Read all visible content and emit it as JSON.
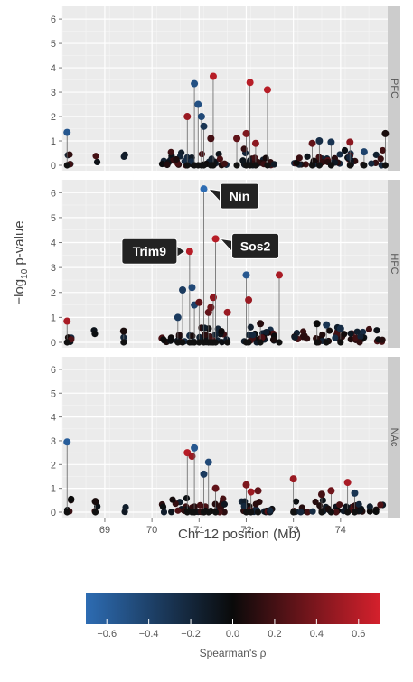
{
  "chart_data": {
    "type": "scatter",
    "subtype": "faceted-manhattan-lollipop",
    "xlabel": "Chr 12 position (Mb)",
    "ylabel": "−log10 p-value",
    "xlim": [
      68.1,
      75.0
    ],
    "ylim": [
      0,
      6.3
    ],
    "x_ticks": [
      69,
      70,
      71,
      72,
      73,
      74
    ],
    "y_ticks": [
      0,
      1,
      2,
      3,
      4,
      5,
      6
    ],
    "grid": true,
    "color_scale": {
      "title": "Spearman's ρ",
      "min": -0.7,
      "max": 0.7,
      "ticks": [
        "−0.6",
        "−0.4",
        "−0.2",
        "0.0",
        "0.2",
        "0.4",
        "0.6"
      ],
      "tick_values": [
        -0.6,
        -0.4,
        -0.2,
        0.0,
        0.2,
        0.4,
        0.6
      ],
      "low_color": "#2d6cb3",
      "mid_color": "#0a0a0a",
      "high_color": "#d4202c"
    },
    "panels": [
      {
        "strip": "PFC",
        "highlights": [
          {
            "x": 68.2,
            "y": 1.35,
            "r": -0.55
          },
          {
            "x": 70.75,
            "y": 2.0,
            "r": 0.5
          },
          {
            "x": 70.9,
            "y": 3.35,
            "r": -0.5
          },
          {
            "x": 70.98,
            "y": 2.5,
            "r": -0.5
          },
          {
            "x": 71.05,
            "y": 2.0,
            "r": -0.45
          },
          {
            "x": 71.1,
            "y": 1.6,
            "r": -0.3
          },
          {
            "x": 71.3,
            "y": 3.65,
            "r": 0.6
          },
          {
            "x": 71.25,
            "y": 1.1,
            "r": 0.2
          },
          {
            "x": 71.8,
            "y": 1.1,
            "r": 0.3
          },
          {
            "x": 72.0,
            "y": 1.3,
            "r": 0.4
          },
          {
            "x": 72.08,
            "y": 3.4,
            "r": 0.6
          },
          {
            "x": 72.2,
            "y": 0.9,
            "r": 0.45
          },
          {
            "x": 72.45,
            "y": 3.1,
            "r": 0.6
          },
          {
            "x": 73.4,
            "y": 0.9,
            "r": 0.3
          },
          {
            "x": 73.55,
            "y": 1.0,
            "r": -0.25
          },
          {
            "x": 73.8,
            "y": 0.95,
            "r": -0.3
          },
          {
            "x": 74.2,
            "y": 0.95,
            "r": 0.45
          },
          {
            "x": 74.5,
            "y": 0.55,
            "r": -0.4
          },
          {
            "x": 74.95,
            "y": 1.3,
            "r": 0.05
          }
        ],
        "annotations": []
      },
      {
        "strip": "HPC",
        "highlights": [
          {
            "x": 68.2,
            "y": 0.85,
            "r": 0.55
          },
          {
            "x": 69.4,
            "y": 0.45,
            "r": 0.05
          },
          {
            "x": 70.55,
            "y": 1.0,
            "r": -0.35
          },
          {
            "x": 70.65,
            "y": 2.1,
            "r": -0.35
          },
          {
            "x": 70.8,
            "y": 3.65,
            "r": 0.6
          },
          {
            "x": 70.85,
            "y": 2.2,
            "r": -0.45
          },
          {
            "x": 70.9,
            "y": 1.5,
            "r": -0.4
          },
          {
            "x": 71.0,
            "y": 1.6,
            "r": 0.3
          },
          {
            "x": 71.1,
            "y": 6.15,
            "r": -0.7
          },
          {
            "x": 71.2,
            "y": 1.2,
            "r": 0.3
          },
          {
            "x": 71.25,
            "y": 1.4,
            "r": 0.35
          },
          {
            "x": 71.3,
            "y": 1.8,
            "r": 0.45
          },
          {
            "x": 71.35,
            "y": 4.15,
            "r": 0.6
          },
          {
            "x": 71.6,
            "y": 1.2,
            "r": 0.5
          },
          {
            "x": 72.0,
            "y": 2.7,
            "r": -0.55
          },
          {
            "x": 72.05,
            "y": 1.7,
            "r": 0.5
          },
          {
            "x": 72.3,
            "y": 0.75,
            "r": 0.1
          },
          {
            "x": 72.7,
            "y": 2.7,
            "r": 0.55
          },
          {
            "x": 73.5,
            "y": 0.75,
            "r": 0.0
          },
          {
            "x": 73.7,
            "y": 0.7,
            "r": -0.3
          },
          {
            "x": 74.0,
            "y": 0.55,
            "r": -0.25
          }
        ],
        "annotations": [
          {
            "label": "Nin",
            "x": 71.1,
            "y": 6.15
          },
          {
            "label": "Sos2",
            "x": 71.35,
            "y": 4.15
          },
          {
            "label": "Trim9",
            "x": 70.8,
            "y": 3.65
          }
        ]
      },
      {
        "strip": "NAc",
        "highlights": [
          {
            "x": 68.2,
            "y": 2.95,
            "r": -0.6
          },
          {
            "x": 68.8,
            "y": 0.45,
            "r": 0.05
          },
          {
            "x": 70.75,
            "y": 2.5,
            "r": 0.6
          },
          {
            "x": 70.85,
            "y": 2.35,
            "r": 0.5
          },
          {
            "x": 70.9,
            "y": 2.7,
            "r": -0.55
          },
          {
            "x": 71.1,
            "y": 1.6,
            "r": -0.35
          },
          {
            "x": 71.2,
            "y": 2.1,
            "r": -0.45
          },
          {
            "x": 71.35,
            "y": 1.0,
            "r": 0.3
          },
          {
            "x": 72.0,
            "y": 1.15,
            "r": 0.4
          },
          {
            "x": 72.1,
            "y": 0.85,
            "r": 0.5
          },
          {
            "x": 72.25,
            "y": 0.9,
            "r": 0.3
          },
          {
            "x": 73.0,
            "y": 1.4,
            "r": 0.5
          },
          {
            "x": 73.6,
            "y": 0.75,
            "r": 0.2
          },
          {
            "x": 73.8,
            "y": 0.9,
            "r": 0.35
          },
          {
            "x": 74.15,
            "y": 1.25,
            "r": 0.55
          },
          {
            "x": 74.3,
            "y": 0.8,
            "r": -0.3
          }
        ],
        "annotations": []
      }
    ],
    "background_points_note": ""
  }
}
